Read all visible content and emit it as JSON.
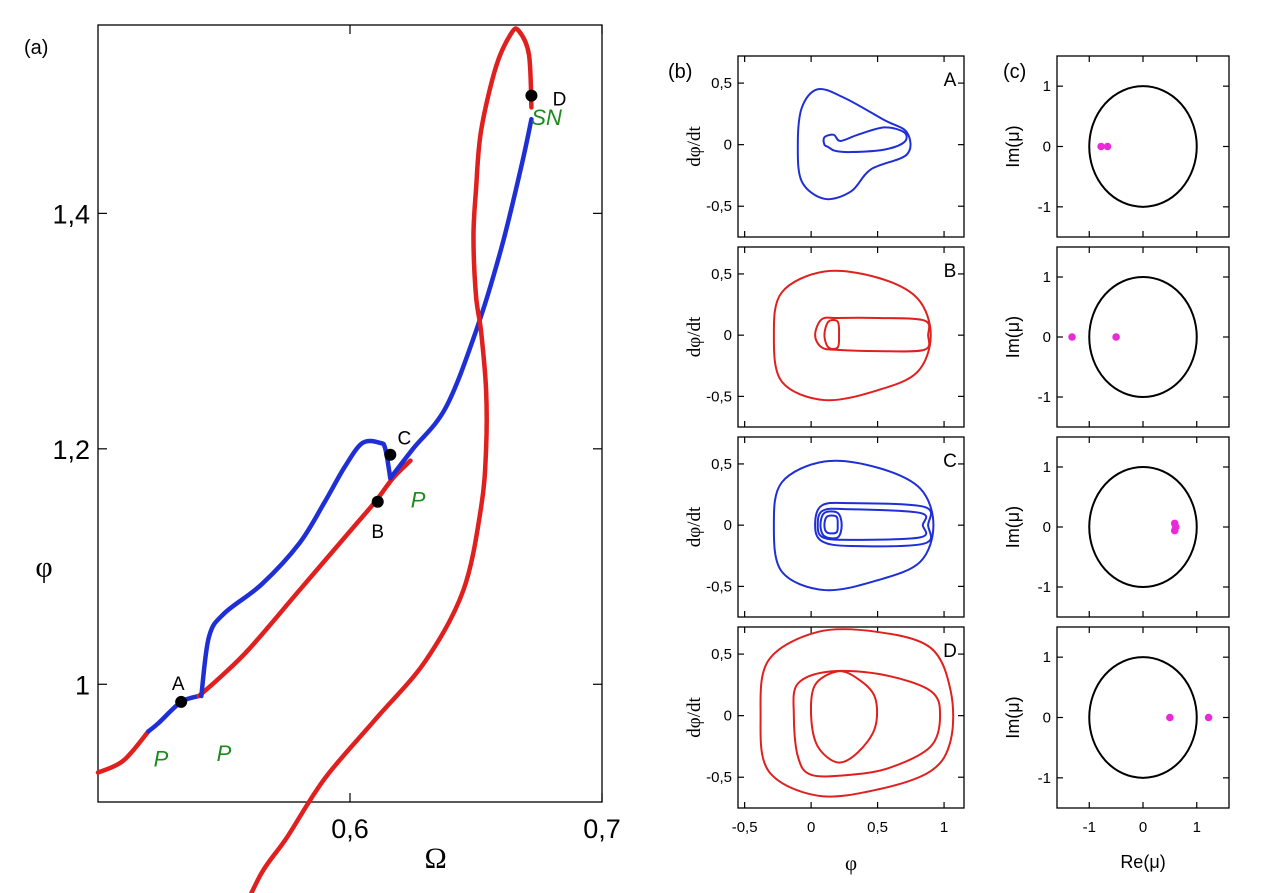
{
  "panel_labels": {
    "a": "(a)",
    "b": "(b)",
    "c": "(c)"
  },
  "colors": {
    "stable": "#e0201e",
    "unstable": "#1f2fd6",
    "eigen": "#e82ad8",
    "annot": "#1e8a1e",
    "circle": "#000000"
  },
  "chart_data": [
    {
      "type": "line",
      "xlabel": "Ω",
      "ylabel": "φ",
      "xlim": [
        0.5,
        0.7
      ],
      "ylim": [
        0.9,
        1.56
      ],
      "xticks": [
        "0,6",
        "0,7"
      ],
      "yticks": [
        "1",
        "1,2",
        "1,4"
      ],
      "series": [
        {
          "color": "red",
          "points": [
            [
              0.5,
              0.925
            ],
            [
              0.51,
              0.935
            ],
            [
              0.52,
              0.96
            ]
          ]
        },
        {
          "color": "blue",
          "points": [
            [
              0.52,
              0.96
            ],
            [
              0.524,
              0.967
            ],
            [
              0.533,
              0.985
            ],
            [
              0.54,
              0.99
            ]
          ]
        },
        {
          "color": "red",
          "points": [
            [
              0.54,
              0.99
            ],
            [
              0.548,
              1.005
            ],
            [
              0.56,
              1.03
            ],
            [
              0.58,
              1.08
            ],
            [
              0.6,
              1.13
            ],
            [
              0.61,
              1.155
            ],
            [
              0.617,
              1.175
            ],
            [
              0.624,
              1.19
            ]
          ]
        },
        {
          "color": "blue",
          "points": [
            [
              0.541,
              0.99
            ],
            [
              0.544,
              1.04
            ],
            [
              0.55,
              1.06
            ],
            [
              0.565,
              1.085
            ],
            [
              0.58,
              1.12
            ],
            [
              0.59,
              1.155
            ],
            [
              0.598,
              1.185
            ],
            [
              0.605,
              1.205
            ],
            [
              0.612,
              1.205
            ],
            [
              0.614,
              1.2
            ],
            [
              0.616,
              1.175
            ]
          ]
        },
        {
          "color": "blue",
          "points": [
            [
              0.616,
              1.175
            ],
            [
              0.625,
              1.2
            ],
            [
              0.638,
              1.235
            ],
            [
              0.65,
              1.3
            ],
            [
              0.66,
              1.37
            ],
            [
              0.668,
              1.44
            ],
            [
              0.672,
              1.48
            ]
          ]
        },
        {
          "color": "red",
          "points": [
            [
              0.672,
              1.49
            ],
            [
              0.671,
              1.535
            ],
            [
              0.667,
              1.555
            ],
            [
              0.664,
              1.553
            ],
            [
              0.658,
              1.525
            ],
            [
              0.652,
              1.47
            ],
            [
              0.65,
              1.42
            ],
            [
              0.649,
              1.38
            ],
            [
              0.65,
              1.33
            ],
            [
              0.652,
              1.3
            ],
            [
              0.654,
              1.25
            ],
            [
              0.654,
              1.2
            ],
            [
              0.652,
              1.15
            ],
            [
              0.645,
              1.08
            ],
            [
              0.63,
              1.02
            ],
            [
              0.61,
              0.97
            ],
            [
              0.59,
              0.92
            ],
            [
              0.575,
              0.87
            ],
            [
              0.565,
              0.84
            ],
            [
              0.556,
              0.8
            ]
          ]
        }
      ],
      "points": [
        {
          "label": "A",
          "x": 0.533,
          "y": 0.985
        },
        {
          "label": "B",
          "x": 0.611,
          "y": 1.155
        },
        {
          "label": "C",
          "x": 0.616,
          "y": 1.195
        },
        {
          "label": "D",
          "x": 0.672,
          "y": 1.5
        }
      ],
      "annotations": [
        {
          "text": "P",
          "x": 0.525,
          "y": 0.93
        },
        {
          "text": "P",
          "x": 0.55,
          "y": 0.935
        },
        {
          "text": "P",
          "x": 0.627,
          "y": 1.15
        },
        {
          "text": "SN",
          "x": 0.678,
          "y": 1.475
        }
      ]
    },
    {
      "type": "line",
      "xlabel": "φ",
      "ylabel": "dφ/dt",
      "xlim": [
        -0.55,
        1.15
      ],
      "ylim": [
        -0.75,
        0.72
      ],
      "xticks": [
        "-0,5",
        "0",
        "0,5",
        "1"
      ],
      "yticks": [
        "-0,5",
        "0",
        "0,5"
      ],
      "panels": [
        {
          "label": "A",
          "color": "blue",
          "loops": [
            [
              [
                -0.1,
                0
              ],
              [
                -0.07,
                0.3
              ],
              [
                0.05,
                0.45
              ],
              [
                0.25,
                0.38
              ],
              [
                0.55,
                0.2
              ],
              [
                0.72,
                0.1
              ],
              [
                0.72,
                -0.08
              ],
              [
                0.45,
                -0.2
              ],
              [
                0.3,
                -0.38
              ],
              [
                0.1,
                -0.44
              ],
              [
                -0.07,
                -0.3
              ],
              [
                -0.1,
                0
              ]
            ],
            [
              [
                0.1,
                0
              ],
              [
                0.1,
                0.06
              ],
              [
                0.17,
                0.08
              ],
              [
                0.22,
                0.03
              ],
              [
                0.35,
                0.08
              ],
              [
                0.55,
                0.14
              ],
              [
                0.7,
                0.1
              ],
              [
                0.7,
                0.02
              ],
              [
                0.55,
                -0.04
              ],
              [
                0.3,
                -0.06
              ],
              [
                0.18,
                -0.05
              ],
              [
                0.13,
                -0.02
              ],
              [
                0.1,
                0
              ]
            ]
          ]
        },
        {
          "label": "B",
          "color": "red",
          "loops": [
            [
              [
                -0.28,
                0
              ],
              [
                -0.22,
                0.35
              ],
              [
                0.1,
                0.52
              ],
              [
                0.5,
                0.47
              ],
              [
                0.8,
                0.3
              ],
              [
                0.9,
                0
              ],
              [
                0.8,
                -0.3
              ],
              [
                0.5,
                -0.45
              ],
              [
                0.1,
                -0.53
              ],
              [
                -0.22,
                -0.38
              ],
              [
                -0.28,
                0
              ]
            ],
            [
              [
                0.03,
                0
              ],
              [
                0.08,
                0.13
              ],
              [
                0.2,
                0.14
              ],
              [
                0.5,
                0.14
              ],
              [
                0.85,
                0.12
              ],
              [
                0.88,
                0
              ],
              [
                0.85,
                -0.12
              ],
              [
                0.5,
                -0.13
              ],
              [
                0.2,
                -0.12
              ],
              [
                0.08,
                -0.1
              ],
              [
                0.03,
                0
              ]
            ],
            [
              [
                0.1,
                0
              ],
              [
                0.13,
                0.11
              ],
              [
                0.2,
                0.11
              ],
              [
                0.21,
                0
              ],
              [
                0.2,
                -0.1
              ],
              [
                0.13,
                -0.1
              ],
              [
                0.1,
                0
              ]
            ]
          ]
        },
        {
          "label": "C",
          "color": "blue",
          "loops": [
            [
              [
                -0.28,
                0
              ],
              [
                -0.22,
                0.35
              ],
              [
                0.1,
                0.52
              ],
              [
                0.5,
                0.47
              ],
              [
                0.82,
                0.3
              ],
              [
                0.92,
                0
              ],
              [
                0.82,
                -0.3
              ],
              [
                0.5,
                -0.45
              ],
              [
                0.1,
                -0.53
              ],
              [
                -0.22,
                -0.38
              ],
              [
                -0.28,
                0
              ]
            ],
            [
              [
                0.03,
                0
              ],
              [
                0.08,
                0.16
              ],
              [
                0.3,
                0.18
              ],
              [
                0.85,
                0.15
              ],
              [
                0.88,
                0
              ],
              [
                0.85,
                -0.15
              ],
              [
                0.3,
                -0.17
              ],
              [
                0.08,
                -0.13
              ],
              [
                0.03,
                0
              ]
            ],
            [
              [
                0.05,
                0
              ],
              [
                0.09,
                0.12
              ],
              [
                0.3,
                0.13
              ],
              [
                0.82,
                0.1
              ],
              [
                0.84,
                0
              ],
              [
                0.82,
                -0.1
              ],
              [
                0.3,
                -0.12
              ],
              [
                0.09,
                -0.1
              ],
              [
                0.05,
                0
              ]
            ],
            [
              [
                0.07,
                0
              ],
              [
                0.1,
                0.1
              ],
              [
                0.2,
                0.1
              ],
              [
                0.23,
                0
              ],
              [
                0.2,
                -0.1
              ],
              [
                0.1,
                -0.09
              ],
              [
                0.07,
                0
              ]
            ],
            [
              [
                0.1,
                0
              ],
              [
                0.12,
                0.07
              ],
              [
                0.19,
                0.07
              ],
              [
                0.2,
                0
              ],
              [
                0.19,
                -0.06
              ],
              [
                0.12,
                -0.06
              ],
              [
                0.1,
                0
              ]
            ]
          ]
        },
        {
          "label": "D",
          "color": "red",
          "loops": [
            [
              [
                -0.38,
                0
              ],
              [
                -0.32,
                0.45
              ],
              [
                0.05,
                0.68
              ],
              [
                0.5,
                0.68
              ],
              [
                0.9,
                0.55
              ],
              [
                1.05,
                0.2
              ],
              [
                1.05,
                -0.2
              ],
              [
                0.9,
                -0.45
              ],
              [
                0.5,
                -0.6
              ],
              [
                0.05,
                -0.65
              ],
              [
                -0.32,
                -0.45
              ],
              [
                -0.38,
                0
              ]
            ],
            [
              [
                -0.13,
                0
              ],
              [
                -0.1,
                0.26
              ],
              [
                0.15,
                0.36
              ],
              [
                0.55,
                0.33
              ],
              [
                0.9,
                0.2
              ],
              [
                0.97,
                0
              ],
              [
                0.9,
                -0.25
              ],
              [
                0.6,
                -0.42
              ],
              [
                0.3,
                -0.48
              ],
              [
                0.0,
                -0.48
              ],
              [
                -0.1,
                -0.33
              ],
              [
                -0.13,
                0
              ]
            ],
            [
              [
                0.0,
                0
              ],
              [
                0.03,
                0.25
              ],
              [
                0.2,
                0.36
              ],
              [
                0.35,
                0.3
              ],
              [
                0.48,
                0.15
              ],
              [
                0.48,
                -0.1
              ],
              [
                0.35,
                -0.3
              ],
              [
                0.2,
                -0.38
              ],
              [
                0.05,
                -0.25
              ],
              [
                0.0,
                0
              ]
            ]
          ]
        }
      ]
    },
    {
      "type": "scatter",
      "xlabel": "Re(μ)",
      "ylabel": "Im(μ)",
      "xlim": [
        -1.6,
        1.6
      ],
      "ylim": [
        -1.5,
        1.5
      ],
      "xticks": [
        "-1",
        "0",
        "1"
      ],
      "yticks": [
        "-1",
        "0",
        "1"
      ],
      "panels": [
        {
          "multipliers": [
            [
              -0.78,
              0.0
            ],
            [
              -0.66,
              0.0
            ]
          ]
        },
        {
          "multipliers": [
            [
              -1.32,
              0.0
            ],
            [
              -0.5,
              0.0
            ]
          ]
        },
        {
          "multipliers": [
            [
              0.59,
              0.06
            ],
            [
              0.59,
              -0.06
            ],
            [
              0.61,
              0.0
            ]
          ]
        },
        {
          "multipliers": [
            [
              0.5,
              0.0
            ],
            [
              1.22,
              0.0
            ]
          ]
        }
      ]
    }
  ]
}
